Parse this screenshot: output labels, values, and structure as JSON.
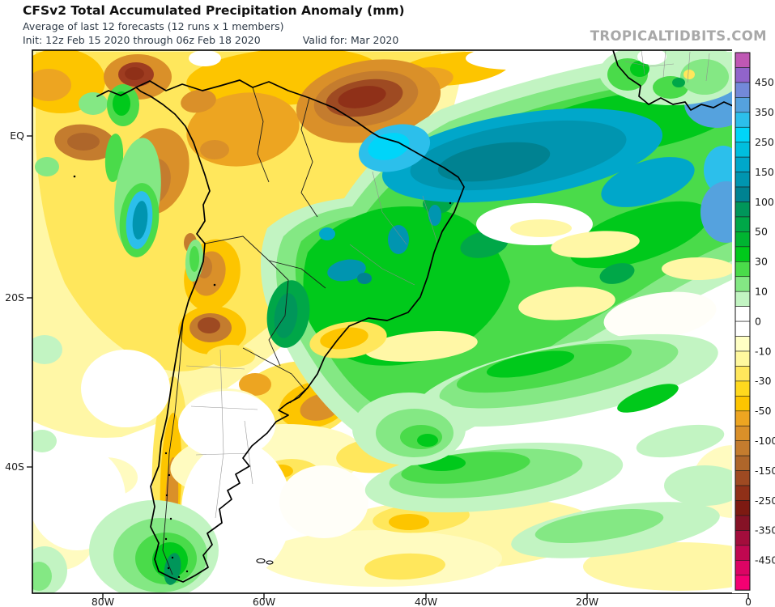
{
  "header": {
    "title": "CFSv2 Total Accumulated Precipitation Anomaly (mm)",
    "subtitle": "Average of last 12 forecasts (12 runs x 1 members)",
    "init_label": "Init: 12z Feb 15 2020 through 06z Feb 18 2020",
    "valid_label": "Valid for: Mar 2020",
    "watermark": "TROPICALTIDBITS.COM"
  },
  "map": {
    "lat_labels": [
      "EQ",
      "20S",
      "40S"
    ],
    "lon_labels": [
      "80W",
      "60W",
      "40W",
      "20W",
      "0"
    ]
  },
  "colorbar": {
    "unit": "mm",
    "tick_labels": [
      "450",
      "350",
      "250",
      "150",
      "100",
      "50",
      "30",
      "10",
      "0",
      "-10",
      "-30",
      "-50",
      "-100",
      "-150",
      "-250",
      "-350",
      "-450"
    ],
    "colors": [
      "#bf58b4",
      "#9164cb",
      "#7389d9",
      "#55a2de",
      "#2cbfeb",
      "#00d5f9",
      "#00bede",
      "#00a7ca",
      "#0095b0",
      "#008291",
      "#00965a",
      "#00a748",
      "#00b431",
      "#00c91b",
      "#4adb4a",
      "#84e884",
      "#c2f4c2",
      "#ffffff",
      "#ffffff",
      "#ffffc4",
      "#fff89e",
      "#ffe75c",
      "#ffd91e",
      "#fdc500",
      "#eda521",
      "#da9029",
      "#c47c2e",
      "#ae662a",
      "#9e4a22",
      "#8f3018",
      "#7d1a12",
      "#851226",
      "#a30d3c",
      "#c00850",
      "#dc0464",
      "#f40072"
    ]
  },
  "accent_colors": {
    "positive_green": "#00c91b",
    "negative_gold": "#fdc500",
    "frame": "#000000",
    "meta_text": "#2e3a47",
    "watermark_gray": "#a8a8a8"
  }
}
